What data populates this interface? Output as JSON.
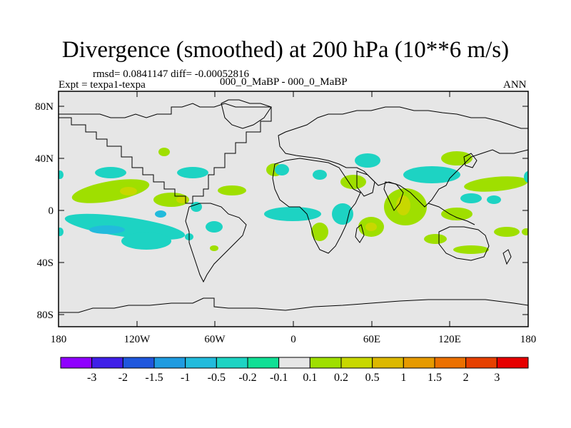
{
  "title": "Divergence (smoothed) at 200 hPa (10**6 m/s)",
  "stats": "rmsd= 0.0841147 diff= -0.00052816",
  "experiment": "Expt = texpa1-texpa",
  "case": "000_0_MaBP - 000_0_MaBP",
  "season": "ANN",
  "lat_ticks": [
    "80N",
    "40N",
    "0",
    "40S",
    "80S"
  ],
  "lon_ticks": [
    "180",
    "120W",
    "60W",
    "0",
    "60E",
    "120E",
    "180"
  ],
  "colorbar": {
    "colors": [
      "#8f00ff",
      "#3f1fe8",
      "#1f57dd",
      "#1f9be0",
      "#22bbdc",
      "#1dd3c3",
      "#11df95",
      "#e6e6e6",
      "#9fdf00",
      "#c8d800",
      "#dcb800",
      "#e69a00",
      "#eb7000",
      "#e64000",
      "#e60000"
    ],
    "labels": [
      "-3",
      "-2",
      "-1.5",
      "-1",
      "-0.5",
      "-0.2",
      "-0.1",
      "0.1",
      "0.2",
      "0.5",
      "1",
      "1.5",
      "2",
      "3"
    ]
  },
  "colors": {
    "background": "#e6e6e6",
    "negative": "#1dd3c3",
    "negative_strong": "#22bbdc",
    "positive": "#9fdf00",
    "positive_strong": "#c8d800"
  }
}
